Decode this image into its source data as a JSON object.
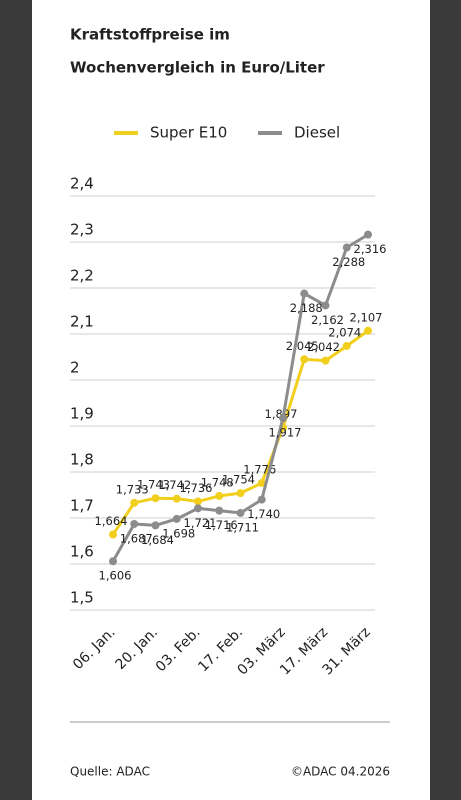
{
  "chart_data": {
    "type": "line",
    "title": "Kraftstoffpreise im",
    "subtitle": "Wochenvergleich in Euro/Liter",
    "categories": [
      "06. Jan.",
      null,
      "20. Jan.",
      null,
      "03. Feb.",
      null,
      "17. Feb.",
      null,
      "03. März",
      null,
      "17. März",
      null,
      "31. März"
    ],
    "series": [
      {
        "name": "Super E10",
        "color": "#f2cf1d",
        "values": [
          1.664,
          1.733,
          1.743,
          1.742,
          1.736,
          1.748,
          1.754,
          1.776,
          1.897,
          2.045,
          2.042,
          2.074,
          2.107
        ],
        "value_labels": [
          "1,664",
          "1,733",
          "1,743",
          "1,742",
          "1,736",
          "1,748",
          "1,754",
          "1,776",
          "1,897",
          "2,045",
          "2,042",
          "2,074",
          "2,107"
        ]
      },
      {
        "name": "Diesel",
        "color": "#8c8c8c",
        "values": [
          1.606,
          1.687,
          1.684,
          1.698,
          1.721,
          1.716,
          1.711,
          1.74,
          1.917,
          2.188,
          2.162,
          2.288,
          2.316
        ],
        "value_labels": [
          "1,606",
          "1,687",
          "1,684",
          "1,698",
          "1,721",
          "1,716",
          "1,711",
          "1,740",
          "1,917",
          "2,188",
          "2,162",
          "2,288",
          "2,316"
        ]
      }
    ],
    "ylim": [
      1.5,
      2.4
    ],
    "yticks": [
      {
        "value": 1.5,
        "label": "1,5"
      },
      {
        "value": 1.6,
        "label": "1,6"
      },
      {
        "value": 1.7,
        "label": "1,7"
      },
      {
        "value": 1.8,
        "label": "1,8"
      },
      {
        "value": 1.9,
        "label": "1,9"
      },
      2,
      {
        "value": 2.1,
        "label": "2,1"
      },
      {
        "value": 2.2,
        "label": "2,2"
      },
      {
        "value": 2.3,
        "label": "2,3"
      },
      {
        "value": 2.4,
        "label": "2,4"
      }
    ],
    "grid": true,
    "source": "Quelle: ADAC",
    "copyright": "©ADAC 04.2026"
  }
}
